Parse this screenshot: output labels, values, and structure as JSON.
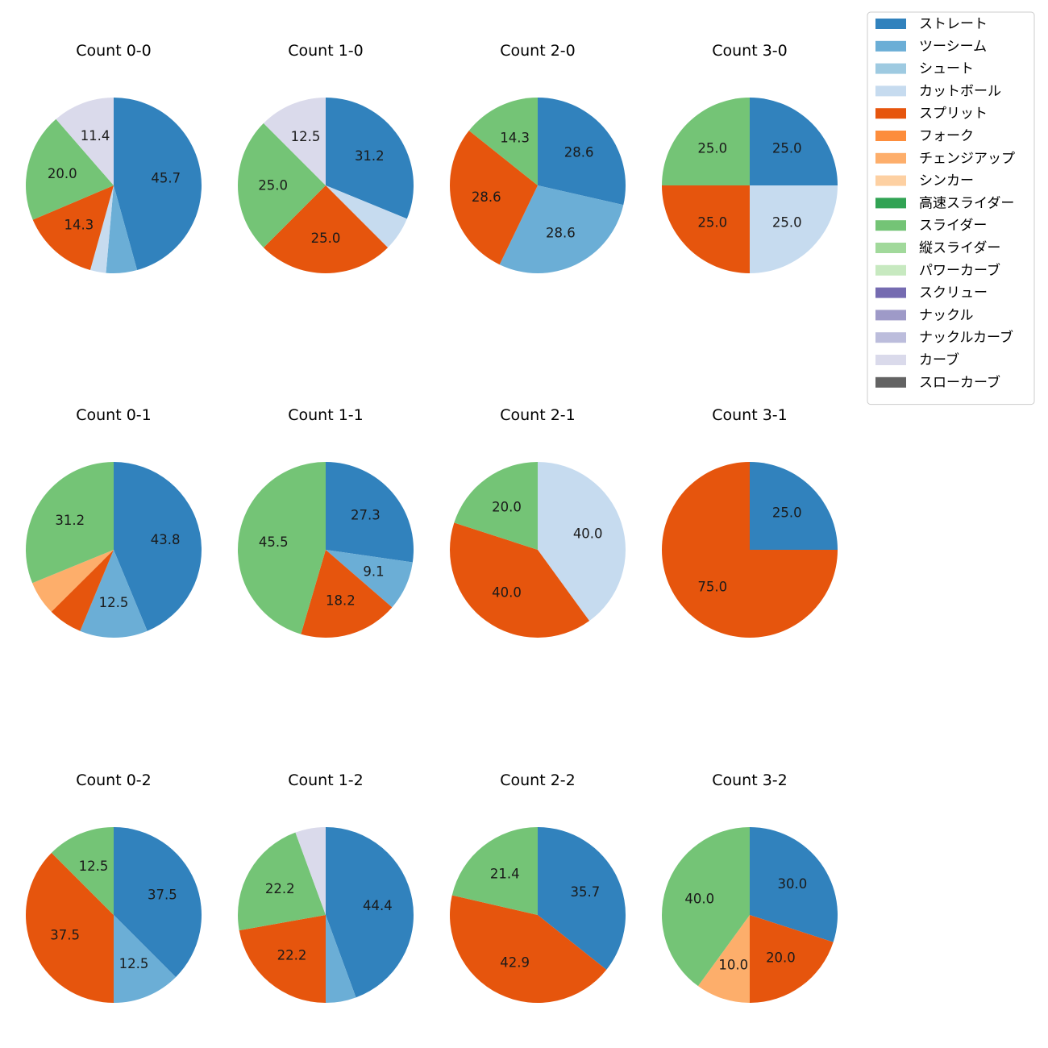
{
  "chart_data": {
    "type": "pie",
    "legend": {
      "placement": "top-right",
      "entries": [
        {
          "label": "ストレート",
          "color": "#3182bd"
        },
        {
          "label": "ツーシーム",
          "color": "#6baed6"
        },
        {
          "label": "シュート",
          "color": "#9ecae1"
        },
        {
          "label": "カットボール",
          "color": "#c6dbef"
        },
        {
          "label": "スプリット",
          "color": "#e6550d"
        },
        {
          "label": "フォーク",
          "color": "#fd8d3c"
        },
        {
          "label": "チェンジアップ",
          "color": "#fdae6b"
        },
        {
          "label": "シンカー",
          "color": "#fdd0a2"
        },
        {
          "label": "高速スライダー",
          "color": "#31a354"
        },
        {
          "label": "スライダー",
          "color": "#74c476"
        },
        {
          "label": "縦スライダー",
          "color": "#a1d99b"
        },
        {
          "label": "パワーカーブ",
          "color": "#c7e9c0"
        },
        {
          "label": "スクリュー",
          "color": "#756bb1"
        },
        {
          "label": "ナックル",
          "color": "#9e9ac8"
        },
        {
          "label": "ナックルカーブ",
          "color": "#bcbddc"
        },
        {
          "label": "カーブ",
          "color": "#dadaeb"
        },
        {
          "label": "スローカーブ",
          "color": "#636363"
        }
      ]
    },
    "pies": [
      {
        "title": "Count 0-0",
        "slices": [
          {
            "pitch": "ストレート",
            "value": 45.7,
            "label": "45.7"
          },
          {
            "pitch": "ツーシーム",
            "value": 5.7,
            "label": ""
          },
          {
            "pitch": "カットボール",
            "value": 2.9,
            "label": ""
          },
          {
            "pitch": "スプリット",
            "value": 14.3,
            "label": "14.3"
          },
          {
            "pitch": "スライダー",
            "value": 20.0,
            "label": "20.0"
          },
          {
            "pitch": "カーブ",
            "value": 11.4,
            "label": "11.4"
          }
        ]
      },
      {
        "title": "Count 1-0",
        "slices": [
          {
            "pitch": "ストレート",
            "value": 31.2,
            "label": "31.2"
          },
          {
            "pitch": "カットボール",
            "value": 6.3,
            "label": ""
          },
          {
            "pitch": "スプリット",
            "value": 25.0,
            "label": "25.0"
          },
          {
            "pitch": "スライダー",
            "value": 25.0,
            "label": "25.0"
          },
          {
            "pitch": "カーブ",
            "value": 12.5,
            "label": "12.5"
          }
        ]
      },
      {
        "title": "Count 2-0",
        "slices": [
          {
            "pitch": "ストレート",
            "value": 28.6,
            "label": "28.6"
          },
          {
            "pitch": "ツーシーム",
            "value": 28.6,
            "label": "28.6"
          },
          {
            "pitch": "スプリット",
            "value": 28.6,
            "label": "28.6"
          },
          {
            "pitch": "スライダー",
            "value": 14.3,
            "label": "14.3"
          }
        ]
      },
      {
        "title": "Count 3-0",
        "slices": [
          {
            "pitch": "ストレート",
            "value": 25.0,
            "label": "25.0"
          },
          {
            "pitch": "カットボール",
            "value": 25.0,
            "label": "25.0"
          },
          {
            "pitch": "スプリット",
            "value": 25.0,
            "label": "25.0"
          },
          {
            "pitch": "スライダー",
            "value": 25.0,
            "label": "25.0"
          }
        ]
      },
      {
        "title": "Count 0-1",
        "slices": [
          {
            "pitch": "ストレート",
            "value": 43.8,
            "label": "43.8"
          },
          {
            "pitch": "ツーシーム",
            "value": 12.5,
            "label": "12.5"
          },
          {
            "pitch": "スプリット",
            "value": 6.3,
            "label": ""
          },
          {
            "pitch": "チェンジアップ",
            "value": 6.3,
            "label": ""
          },
          {
            "pitch": "スライダー",
            "value": 31.2,
            "label": "31.2"
          }
        ]
      },
      {
        "title": "Count 1-1",
        "slices": [
          {
            "pitch": "ストレート",
            "value": 27.3,
            "label": "27.3"
          },
          {
            "pitch": "ツーシーム",
            "value": 9.1,
            "label": "9.1"
          },
          {
            "pitch": "スプリット",
            "value": 18.2,
            "label": "18.2"
          },
          {
            "pitch": "スライダー",
            "value": 45.5,
            "label": "45.5"
          }
        ]
      },
      {
        "title": "Count 2-1",
        "slices": [
          {
            "pitch": "カットボール",
            "value": 40.0,
            "label": "40.0"
          },
          {
            "pitch": "スプリット",
            "value": 40.0,
            "label": "40.0"
          },
          {
            "pitch": "スライダー",
            "value": 20.0,
            "label": "20.0"
          }
        ]
      },
      {
        "title": "Count 3-1",
        "slices": [
          {
            "pitch": "ストレート",
            "value": 25.0,
            "label": "25.0"
          },
          {
            "pitch": "スプリット",
            "value": 75.0,
            "label": "75.0"
          }
        ]
      },
      {
        "title": "Count 0-2",
        "slices": [
          {
            "pitch": "ストレート",
            "value": 37.5,
            "label": "37.5"
          },
          {
            "pitch": "ツーシーム",
            "value": 12.5,
            "label": "12.5"
          },
          {
            "pitch": "スプリット",
            "value": 37.5,
            "label": "37.5"
          },
          {
            "pitch": "スライダー",
            "value": 12.5,
            "label": "12.5"
          }
        ]
      },
      {
        "title": "Count 1-2",
        "slices": [
          {
            "pitch": "ストレート",
            "value": 44.4,
            "label": "44.4"
          },
          {
            "pitch": "ツーシーム",
            "value": 5.6,
            "label": ""
          },
          {
            "pitch": "スプリット",
            "value": 22.2,
            "label": "22.2"
          },
          {
            "pitch": "スライダー",
            "value": 22.2,
            "label": "22.2"
          },
          {
            "pitch": "カーブ",
            "value": 5.6,
            "label": ""
          }
        ]
      },
      {
        "title": "Count 2-2",
        "slices": [
          {
            "pitch": "ストレート",
            "value": 35.7,
            "label": "35.7"
          },
          {
            "pitch": "スプリット",
            "value": 42.9,
            "label": "42.9"
          },
          {
            "pitch": "スライダー",
            "value": 21.4,
            "label": "21.4"
          }
        ]
      },
      {
        "title": "Count 3-2",
        "slices": [
          {
            "pitch": "ストレート",
            "value": 30.0,
            "label": "30.0"
          },
          {
            "pitch": "スプリット",
            "value": 20.0,
            "label": "20.0"
          },
          {
            "pitch": "チェンジアップ",
            "value": 10.0,
            "label": "10.0"
          },
          {
            "pitch": "スライダー",
            "value": 40.0,
            "label": "40.0"
          }
        ]
      }
    ]
  }
}
